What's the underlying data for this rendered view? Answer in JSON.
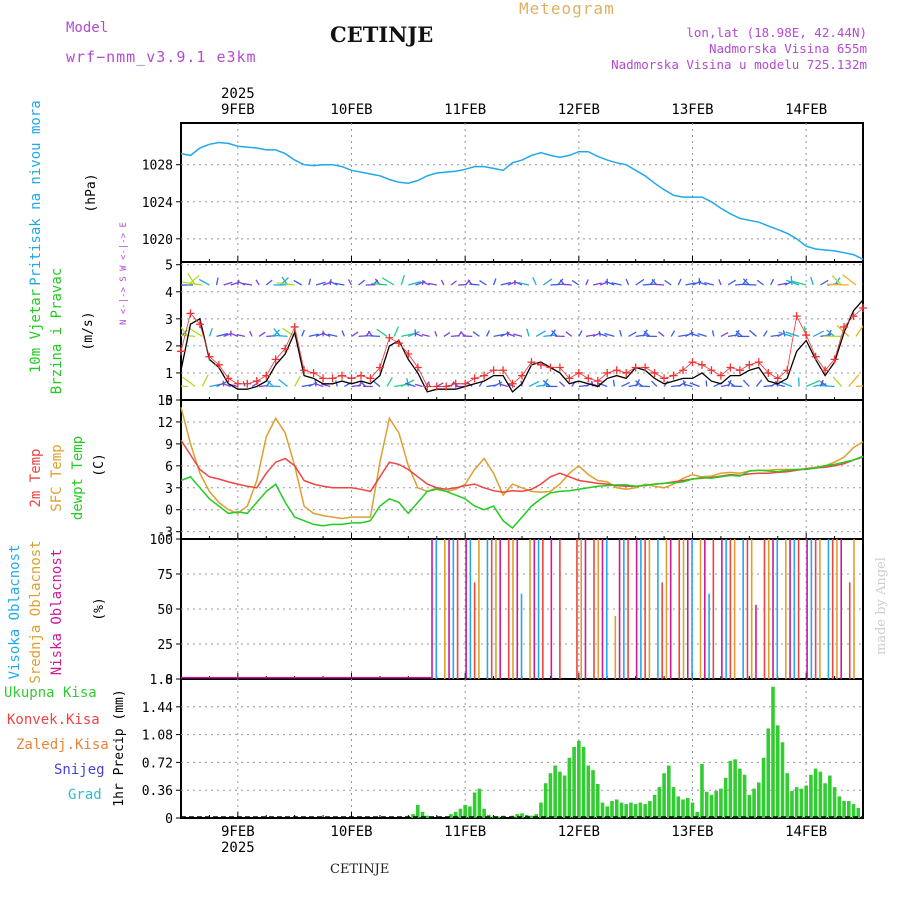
{
  "header": {
    "model_label": "Model",
    "model_name": "wrf−nmm_v3.9.1  e3km",
    "station": "CETINJE",
    "chart_kind": "Meteogram",
    "lonlat": "lon,lat (18.98E, 42.44N)",
    "elev_station": "Nadmorska Visina 655m",
    "elev_model": "Nadmorska Visina u modelu 725.132m",
    "footer_station": "CETINJE",
    "watermark": "made by Angel"
  },
  "colors": {
    "pressure": "#22a8e8",
    "temp2m": "#ee4444",
    "sfctemp": "#dca030",
    "dewpt": "#22cc22",
    "precip": "#33cc33",
    "wind_speed": "#000000",
    "gust": "#ee3333",
    "high_cloud": "#22aaee",
    "mid_cloud": "#dca030",
    "low_cloud": "#cc1a99"
  },
  "chart_data": [
    {
      "id": "pressure",
      "type": "line",
      "title": "Pritisak na nivou mora",
      "ylabel": "(hPa)",
      "ylim": [
        1017.5,
        1032.5
      ],
      "yticks": [
        1020,
        1024,
        1028
      ],
      "top_axis": {
        "year": "2025",
        "labels": [
          "9FEB",
          "10FEB",
          "11FEB",
          "12FEB",
          "13FEB",
          "14FEB"
        ]
      },
      "x": [
        0,
        2,
        4,
        6,
        8,
        10,
        12,
        14,
        16,
        18,
        20,
        22,
        24,
        26,
        28,
        30,
        32,
        34,
        36,
        38,
        40,
        42,
        44,
        46,
        48,
        50,
        52,
        54,
        56,
        58,
        60,
        62,
        64,
        66,
        68,
        70,
        72,
        74,
        76,
        78,
        80,
        82,
        84,
        86,
        88,
        90,
        92,
        94,
        96,
        98,
        100,
        102,
        104,
        106,
        108,
        110,
        112,
        114,
        116,
        118,
        120,
        122,
        124,
        126,
        128,
        130,
        132,
        134,
        136,
        138,
        140,
        142,
        144
      ],
      "values": [
        1029.2,
        1029.0,
        1029.8,
        1030.2,
        1030.4,
        1030.3,
        1030.0,
        1029.9,
        1029.8,
        1029.6,
        1029.6,
        1029.2,
        1028.5,
        1028.0,
        1027.9,
        1028.0,
        1028.0,
        1027.8,
        1027.4,
        1027.2,
        1027.0,
        1026.8,
        1026.4,
        1026.1,
        1026.0,
        1026.3,
        1026.8,
        1027.1,
        1027.2,
        1027.3,
        1027.5,
        1027.8,
        1027.8,
        1027.6,
        1027.4,
        1028.2,
        1028.5,
        1029.0,
        1029.3,
        1029.0,
        1028.8,
        1029.0,
        1029.4,
        1029.4,
        1028.9,
        1028.5,
        1028.2,
        1028.0,
        1027.4,
        1026.8,
        1026.0,
        1025.3,
        1024.7,
        1024.5,
        1024.5,
        1024.5,
        1024.0,
        1023.3,
        1022.7,
        1022.2,
        1022.0,
        1021.8,
        1021.4,
        1021.0,
        1020.6,
        1020.0,
        1019.2,
        1018.9,
        1018.8,
        1018.7,
        1018.5,
        1018.3,
        1017.8
      ]
    },
    {
      "id": "wind",
      "type": "line",
      "title": "10m Vjetar",
      "title2": "Brzina i Pravac",
      "ylabel": "(m/s)",
      "compass": "N <-|-> S   W <-|-> E",
      "ylim": [
        0,
        5.1
      ],
      "yticks": [
        0,
        1,
        2,
        3,
        4,
        5
      ],
      "x": [
        0,
        2,
        4,
        6,
        8,
        10,
        12,
        14,
        16,
        18,
        20,
        22,
        24,
        26,
        28,
        30,
        32,
        34,
        36,
        38,
        40,
        42,
        44,
        46,
        48,
        50,
        52,
        54,
        56,
        58,
        60,
        62,
        64,
        66,
        68,
        70,
        72,
        74,
        76,
        78,
        80,
        82,
        84,
        86,
        88,
        90,
        92,
        94,
        96,
        98,
        100,
        102,
        104,
        106,
        108,
        110,
        112,
        114,
        116,
        118,
        120,
        122,
        124,
        126,
        128,
        130,
        132,
        134,
        136,
        138,
        140,
        142,
        144
      ],
      "speed": [
        1.1,
        2.8,
        3.0,
        1.5,
        1.2,
        0.6,
        0.4,
        0.4,
        0.5,
        0.7,
        1.3,
        1.7,
        2.5,
        0.9,
        0.8,
        0.6,
        0.6,
        0.7,
        0.6,
        0.7,
        0.6,
        0.9,
        2.0,
        2.2,
        1.5,
        1.0,
        0.3,
        0.4,
        0.4,
        0.4,
        0.5,
        0.6,
        0.7,
        0.9,
        0.9,
        0.3,
        0.6,
        1.3,
        1.4,
        1.2,
        1.0,
        0.6,
        0.7,
        0.6,
        0.5,
        0.8,
        0.9,
        0.8,
        1.2,
        1.1,
        0.8,
        0.6,
        0.7,
        0.8,
        0.8,
        1.0,
        0.7,
        0.6,
        0.9,
        0.9,
        1.1,
        1.2,
        0.7,
        0.6,
        0.8,
        1.8,
        2.2,
        1.5,
        0.9,
        1.4,
        2.5,
        3.3,
        3.7
      ],
      "gust": [
        1.8,
        3.2,
        2.8,
        1.6,
        1.3,
        0.8,
        0.6,
        0.6,
        0.7,
        0.9,
        1.5,
        1.9,
        2.7,
        1.1,
        1.0,
        0.8,
        0.8,
        0.9,
        0.8,
        0.9,
        0.8,
        1.2,
        2.3,
        2.1,
        1.7,
        1.2,
        0.5,
        0.5,
        0.5,
        0.6,
        0.6,
        0.8,
        0.9,
        1.1,
        1.1,
        0.6,
        0.9,
        1.4,
        1.3,
        1.2,
        1.2,
        0.8,
        1.0,
        0.8,
        0.7,
        1.0,
        1.1,
        1.0,
        1.2,
        1.2,
        1.0,
        0.8,
        0.9,
        1.1,
        1.4,
        1.3,
        1.1,
        0.9,
        1.2,
        1.1,
        1.3,
        1.4,
        1.0,
        0.8,
        1.1,
        3.1,
        2.4,
        1.6,
        1.1,
        1.5,
        2.7,
        3.1,
        3.4
      ]
    },
    {
      "id": "temperature",
      "type": "line",
      "title": "2m Temp",
      "title2": "SFC Temp",
      "title3": "dewpt Temp",
      "ylabel": "(C)",
      "ylim": [
        -4,
        15
      ],
      "yticks": [
        -3,
        0,
        3,
        6,
        9,
        12,
        15
      ],
      "x": [
        0,
        2,
        4,
        6,
        8,
        10,
        12,
        14,
        16,
        18,
        20,
        22,
        24,
        26,
        28,
        30,
        32,
        34,
        36,
        38,
        40,
        42,
        44,
        46,
        48,
        50,
        52,
        54,
        56,
        58,
        60,
        62,
        64,
        66,
        68,
        70,
        72,
        74,
        76,
        78,
        80,
        82,
        84,
        86,
        88,
        90,
        92,
        94,
        96,
        98,
        100,
        102,
        104,
        106,
        108,
        110,
        112,
        114,
        116,
        118,
        120,
        122,
        124,
        126,
        128,
        130,
        132,
        134,
        136,
        138,
        140,
        142,
        144
      ],
      "t2m": [
        9.5,
        7.5,
        5.5,
        4.5,
        4.2,
        3.8,
        3.5,
        3.2,
        3.0,
        5.0,
        6.5,
        7.0,
        6.0,
        4.0,
        3.5,
        3.2,
        3.0,
        3.0,
        3.0,
        2.8,
        2.5,
        4.5,
        6.5,
        6.2,
        5.5,
        4.5,
        3.5,
        3.0,
        2.8,
        3.0,
        3.3,
        3.5,
        3.0,
        2.6,
        2.4,
        2.6,
        2.5,
        2.8,
        3.5,
        4.5,
        5.0,
        4.5,
        4.0,
        3.8,
        3.6,
        3.5,
        3.3,
        3.2,
        3.2,
        3.3,
        3.5,
        3.6,
        3.8,
        4.0,
        4.2,
        4.3,
        4.4,
        4.6,
        4.8,
        4.7,
        4.9,
        5.0,
        5.0,
        5.1,
        5.2,
        5.4,
        5.6,
        5.7,
        5.8,
        6.0,
        6.3,
        6.8,
        7.2
      ],
      "sfc": [
        14.0,
        9.0,
        5.0,
        2.5,
        1.0,
        0.0,
        -0.5,
        0.5,
        4.0,
        10.0,
        12.5,
        10.5,
        6.0,
        0.5,
        -0.5,
        -0.8,
        -1.0,
        -1.2,
        -1.0,
        -1.0,
        -1.0,
        6.5,
        12.5,
        10.5,
        6.0,
        3.0,
        2.5,
        3.0,
        2.5,
        2.8,
        3.5,
        5.5,
        7.0,
        5.0,
        2.0,
        3.5,
        3.0,
        2.5,
        2.4,
        2.5,
        3.5,
        5.0,
        6.0,
        4.8,
        4.0,
        3.8,
        3.0,
        2.8,
        3.0,
        3.5,
        3.2,
        3.0,
        3.5,
        4.3,
        4.8,
        4.5,
        4.6,
        5.0,
        5.1,
        5.0,
        5.3,
        5.4,
        5.4,
        5.5,
        5.5,
        5.5,
        5.6,
        5.8,
        6.0,
        6.5,
        7.2,
        8.5,
        9.3
      ],
      "dewpt": [
        4.0,
        4.5,
        3.0,
        1.5,
        0.5,
        -0.5,
        -0.3,
        -0.5,
        1.0,
        2.5,
        3.5,
        1.0,
        -1.0,
        -1.5,
        -2.0,
        -2.2,
        -2.0,
        -2.0,
        -1.8,
        -1.8,
        -1.5,
        0.5,
        1.5,
        1.0,
        -0.5,
        1.0,
        2.5,
        2.8,
        2.5,
        2.0,
        1.5,
        0.5,
        0.0,
        0.5,
        -1.5,
        -2.5,
        -1.0,
        0.5,
        1.5,
        2.3,
        2.5,
        2.6,
        2.8,
        3.0,
        3.2,
        3.3,
        3.4,
        3.4,
        3.2,
        3.3,
        3.5,
        3.6,
        3.7,
        3.8,
        4.2,
        4.4,
        4.3,
        4.5,
        4.7,
        4.6,
        5.3,
        5.4,
        5.3,
        5.2,
        5.4,
        5.5,
        5.5,
        5.7,
        6.0,
        6.2,
        6.5,
        6.8,
        7.3
      ]
    },
    {
      "id": "clouds",
      "type": "bar",
      "title": "Visoka Oblacnost",
      "title2": "Srednja Oblacnost",
      "title3": "Niska  Oblacnost",
      "ylabel": "(%)",
      "ylim": [
        0,
        100
      ],
      "yticks": [
        0,
        25,
        50,
        75,
        100
      ],
      "watermark": "made by Angel",
      "note": "0% until 10FEB ~12UTC, then intermittent 100% cloud layers"
    },
    {
      "id": "precip",
      "type": "bar",
      "title": "Ukupna  Kisa",
      "title2": "Konvek.Kisa",
      "title3": "Zaledj.Kisa",
      "title4": "Snijeg",
      "title5": "Grad",
      "ylabel": "1hr Precip (mm)",
      "ylim": [
        0,
        1.8
      ],
      "yticks": [
        0,
        0.36,
        0.72,
        1.08,
        1.44,
        1.8
      ],
      "ytick_labels": [
        "0",
        "0.36",
        "0.72",
        "1.08",
        "1.44",
        "1.8"
      ],
      "bottom_axis": {
        "year": "2025",
        "labels": [
          "9FEB",
          "10FEB",
          "11FEB",
          "12FEB",
          "13FEB",
          "14FEB"
        ]
      },
      "x": [
        49,
        50,
        51,
        52,
        57,
        58,
        59,
        60,
        61,
        62,
        63,
        64,
        65,
        66,
        67,
        68,
        70,
        71,
        72,
        73,
        74,
        75,
        76,
        77,
        78,
        79,
        80,
        81,
        82,
        83,
        84,
        85,
        86,
        87,
        88,
        89,
        90,
        91,
        92,
        93,
        94,
        95,
        96,
        97,
        98,
        99,
        100,
        101,
        102,
        103,
        104,
        105,
        106,
        107,
        108,
        109,
        110,
        111,
        112,
        113,
        114,
        115,
        116,
        117,
        118,
        119,
        120,
        121,
        122,
        123,
        124,
        125,
        126,
        127,
        128,
        129,
        130,
        131,
        132,
        133,
        134,
        135,
        136,
        137,
        138,
        139,
        140,
        141,
        142,
        143
      ],
      "values": [
        0.05,
        0.17,
        0.08,
        0.03,
        0.05,
        0.08,
        0.12,
        0.17,
        0.15,
        0.33,
        0.38,
        0.12,
        0.04,
        0.02,
        0.02,
        0.03,
        0.03,
        0.05,
        0.06,
        0.04,
        0.03,
        0.05,
        0.2,
        0.45,
        0.58,
        0.68,
        0.6,
        0.55,
        0.78,
        0.92,
        1.0,
        0.92,
        0.68,
        0.62,
        0.44,
        0.2,
        0.15,
        0.22,
        0.24,
        0.2,
        0.18,
        0.2,
        0.18,
        0.2,
        0.18,
        0.22,
        0.3,
        0.4,
        0.58,
        0.68,
        0.4,
        0.28,
        0.24,
        0.26,
        0.2,
        0.08,
        0.7,
        0.34,
        0.3,
        0.35,
        0.38,
        0.52,
        0.74,
        0.76,
        0.64,
        0.56,
        0.3,
        0.38,
        0.46,
        0.78,
        1.16,
        1.7,
        1.2,
        0.98,
        0.58,
        0.35,
        0.4,
        0.38,
        0.42,
        0.56,
        0.64,
        0.6,
        0.45,
        0.55,
        0.4,
        0.28,
        0.22,
        0.22,
        0.18,
        0.13
      ]
    }
  ]
}
